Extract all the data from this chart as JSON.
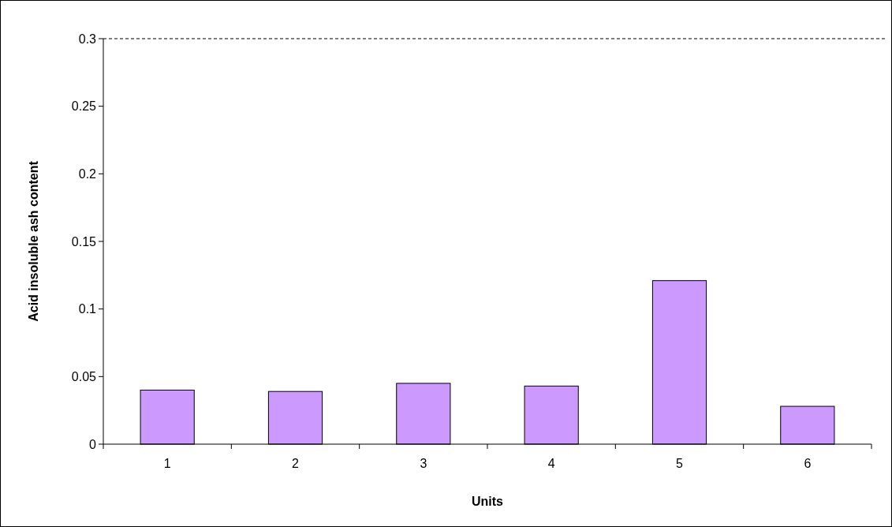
{
  "chart_data": {
    "type": "bar",
    "xlabel": "Units",
    "ylabel": "Acid insoluble ash content",
    "categories": [
      "1",
      "2",
      "3",
      "4",
      "5",
      "6"
    ],
    "values": [
      0.04,
      0.039,
      0.045,
      0.043,
      0.121,
      0.028
    ],
    "color": "#cc99ff",
    "ylim": [
      0,
      0.3
    ],
    "yticks": [
      0,
      0.05,
      0.1,
      0.15,
      0.2,
      0.25,
      0.3
    ],
    "ref_lines": [
      {
        "axis": "y",
        "value": 0.3,
        "line_style": "dashed",
        "color": "#000000"
      }
    ],
    "grid": false
  }
}
